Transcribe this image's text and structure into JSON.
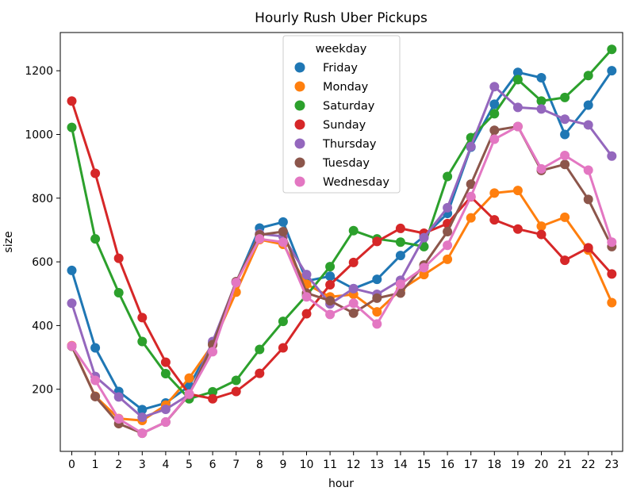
{
  "chart_data": {
    "type": "line",
    "title": "Hourly Rush Uber Pickups",
    "xlabel": "hour",
    "ylabel": "size",
    "categories": [
      "0",
      "1",
      "2",
      "3",
      "4",
      "5",
      "6",
      "7",
      "8",
      "9",
      "10",
      "11",
      "12",
      "13",
      "14",
      "15",
      "16",
      "17",
      "18",
      "19",
      "20",
      "21",
      "22",
      "23"
    ],
    "yticks": [
      200,
      400,
      600,
      800,
      1000,
      1200
    ],
    "ylim": [
      5,
      1320
    ],
    "grid": false,
    "legend": {
      "title": "weekday",
      "placement": "top-center"
    },
    "series": [
      {
        "name": "Friday",
        "color": "#1f77b4",
        "values": [
          573,
          330,
          193,
          136,
          157,
          210,
          345,
          535,
          706,
          725,
          540,
          555,
          516,
          545,
          620,
          680,
          752,
          960,
          1095,
          1195,
          1178,
          1000,
          1092,
          1200
        ]
      },
      {
        "name": "Monday",
        "color": "#ff7f0e",
        "values": [
          337,
          178,
          108,
          102,
          150,
          235,
          340,
          505,
          670,
          655,
          530,
          490,
          498,
          443,
          512,
          560,
          608,
          738,
          816,
          824,
          712,
          740,
          637,
          472
        ]
      },
      {
        "name": "Saturday",
        "color": "#2ca02c",
        "values": [
          1022,
          672,
          503,
          350,
          249,
          170,
          192,
          228,
          325,
          413,
          495,
          585,
          698,
          672,
          662,
          648,
          868,
          990,
          1065,
          1172,
          1105,
          1116,
          1185,
          1267
        ]
      },
      {
        "name": "Sunday",
        "color": "#d62728",
        "values": [
          1105,
          878,
          611,
          425,
          285,
          185,
          170,
          193,
          250,
          330,
          437,
          528,
          598,
          664,
          705,
          690,
          720,
          804,
          732,
          703,
          686,
          605,
          644,
          562
        ]
      },
      {
        "name": "Thursday",
        "color": "#9467bd",
        "values": [
          470,
          240,
          176,
          112,
          137,
          183,
          350,
          537,
          688,
          680,
          560,
          468,
          516,
          498,
          542,
          676,
          770,
          962,
          1150,
          1085,
          1080,
          1048,
          1030,
          932
        ]
      },
      {
        "name": "Tuesday",
        "color": "#8c564b",
        "values": [
          335,
          177,
          92,
          62,
          97,
          183,
          340,
          538,
          685,
          695,
          502,
          478,
          439,
          486,
          502,
          590,
          695,
          844,
          1013,
          1025,
          887,
          906,
          796,
          648
        ]
      },
      {
        "name": "Wednesday",
        "color": "#e377c2",
        "values": [
          336,
          228,
          107,
          62,
          97,
          185,
          318,
          535,
          672,
          662,
          490,
          435,
          470,
          405,
          530,
          582,
          652,
          805,
          985,
          1025,
          892,
          934,
          888,
          662
        ]
      }
    ]
  }
}
